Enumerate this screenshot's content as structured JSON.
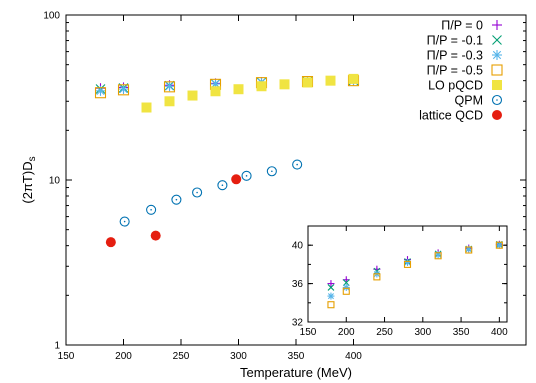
{
  "chart_data": [
    {
      "type": "scatter",
      "xlabel": "Temperature (MeV)",
      "ylabel": "(2πT)D",
      "ylabel_sub": "s",
      "xlim": [
        150,
        550
      ],
      "ylim": [
        1,
        100
      ],
      "yscale": "log",
      "x_ticks": [
        150,
        200,
        250,
        300,
        350,
        400
      ],
      "x_tick_labels": [
        "150",
        "200",
        "250",
        "300",
        "350",
        "400"
      ],
      "y_ticks": [
        1,
        10,
        100
      ],
      "y_tick_labels": [
        "1",
        "10",
        "100"
      ],
      "legend_position": "top-right",
      "grid": false,
      "series": [
        {
          "name": "Π/P = 0",
          "marker": "plus",
          "color": "#9400d3",
          "x": [
            180,
            200,
            240,
            280,
            320,
            360,
            400
          ],
          "y": [
            36.0,
            36.4,
            37.5,
            38.5,
            39.2,
            39.7,
            40.1
          ]
        },
        {
          "name": "Π/P = -0.1",
          "marker": "cross",
          "color": "#009e73",
          "x": [
            180,
            200,
            240,
            280,
            320,
            360,
            400
          ],
          "y": [
            35.6,
            36.1,
            37.3,
            38.3,
            39.1,
            39.6,
            40.1
          ]
        },
        {
          "name": "Π/P = -0.3",
          "marker": "star",
          "color": "#56b4e9",
          "x": [
            180,
            200,
            240,
            280,
            320,
            360,
            400
          ],
          "y": [
            34.7,
            35.6,
            37.0,
            38.2,
            39.0,
            39.6,
            40.0
          ]
        },
        {
          "name": "Π/P = -0.5",
          "marker": "open-square",
          "color": "#e69f00",
          "x": [
            180,
            200,
            240,
            280,
            320,
            360,
            400
          ],
          "y": [
            33.8,
            35.2,
            36.7,
            38.0,
            38.9,
            39.5,
            40.0
          ]
        },
        {
          "name": "LO pQCD",
          "marker": "filled-square",
          "color": "#f0e442",
          "x": [
            220,
            240,
            260,
            280,
            300,
            320,
            340,
            360,
            380,
            400
          ],
          "y": [
            27.5,
            30.0,
            32.5,
            34.5,
            35.5,
            37.0,
            38.0,
            39.0,
            40.0,
            41.0
          ]
        },
        {
          "name": "QPM",
          "marker": "open-circle",
          "color": "#0072b2",
          "x": [
            201,
            224,
            246,
            264,
            286,
            307,
            329,
            351
          ],
          "y": [
            5.6,
            6.6,
            7.6,
            8.4,
            9.3,
            10.6,
            11.3,
            12.4
          ]
        },
        {
          "name": "lattice QCD",
          "marker": "filled-circle",
          "color": "#e51e10",
          "x": [
            189,
            228,
            298
          ],
          "y": [
            4.2,
            4.6,
            10.1
          ]
        }
      ]
    },
    {
      "type": "scatter",
      "role": "inset",
      "xlim": [
        150,
        410
      ],
      "ylim": [
        32,
        42
      ],
      "x_ticks": [
        150,
        200,
        250,
        300,
        350,
        400
      ],
      "x_tick_labels": [
        "150",
        "200",
        "250",
        "300",
        "350",
        "400"
      ],
      "y_ticks": [
        32,
        36,
        40
      ],
      "y_tick_labels": [
        "32",
        "36",
        "40"
      ],
      "series_ref": [
        0,
        1,
        2,
        3
      ]
    }
  ]
}
